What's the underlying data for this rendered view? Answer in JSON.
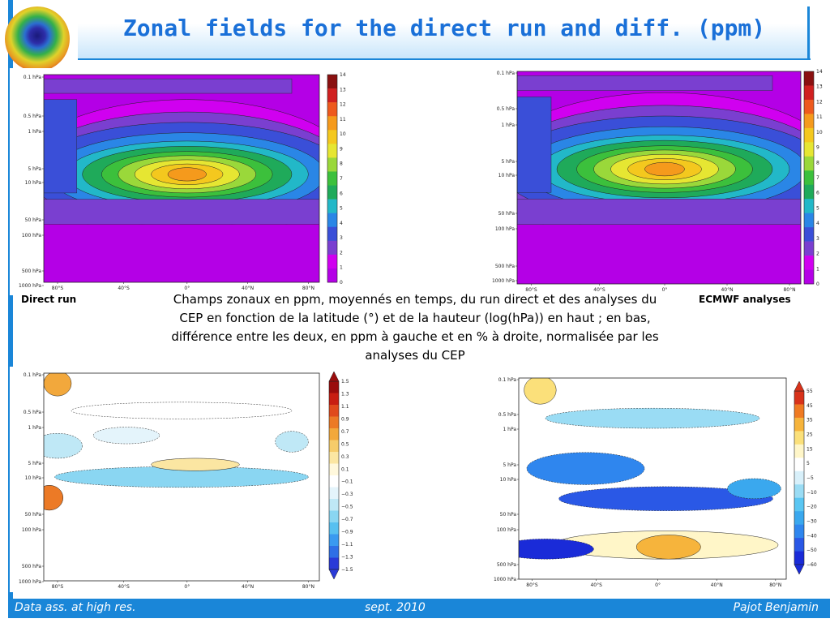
{
  "slide": {
    "title": "Zonal fields for the direct run and diff. (ppm)",
    "label_direct": "Direct run",
    "label_ecmwf": "ECMWF analyses",
    "caption": "Champs zonaux en ppm, moyennés en temps, du run direct et des analyses du CEP en fonction de la latitude (°) et de la hauteur (log(hPa)) en haut ; en bas, différence entre les deux, en ppm à gauche et en % à droite, normalisée par les analyses du CEP"
  },
  "footer": {
    "left": "Data ass. at high res.",
    "center": "sept. 2010",
    "right": "Pajot Benjamin"
  },
  "colors": {
    "accent": "#1a86d8",
    "title_text": "#1a70d8"
  },
  "axes": {
    "pressure_labels": [
      "0.1 hPa",
      "0.5 hPa",
      "1 hPa",
      "5 hPa",
      "10 hPa",
      "50 hPa",
      "100 hPa",
      "500 hPa",
      "1000 hPa"
    ],
    "latitude_labels": [
      "80°S",
      "40°S",
      "0°",
      "40°N",
      "80°N"
    ]
  },
  "colorbars": {
    "ppm_field": [
      "14",
      "13",
      "12",
      "11",
      "10",
      "9",
      "8",
      "7",
      "6",
      "5",
      "4",
      "3",
      "2",
      "1",
      "0"
    ],
    "ppm_diff": [
      "1.5",
      "1.3",
      "1.1",
      "0.9",
      "0.7",
      "0.5",
      "0.3",
      "0.1",
      "−0.1",
      "−0.3",
      "−0.5",
      "−0.7",
      "−0.9",
      "−1.1",
      "−1.3",
      "−1.5"
    ],
    "pct_diff": [
      "55",
      "45",
      "35",
      "25",
      "15",
      "5",
      "−5",
      "−10",
      "−20",
      "−30",
      "−40",
      "−50",
      "−60"
    ]
  },
  "plots": [
    {
      "name": "direct-run-plot",
      "kind": "field"
    },
    {
      "name": "ecmwf-analyses-plot",
      "kind": "field"
    },
    {
      "name": "diff-ppm-plot",
      "kind": "diff_ppm"
    },
    {
      "name": "diff-percent-plot",
      "kind": "diff_pct"
    }
  ]
}
